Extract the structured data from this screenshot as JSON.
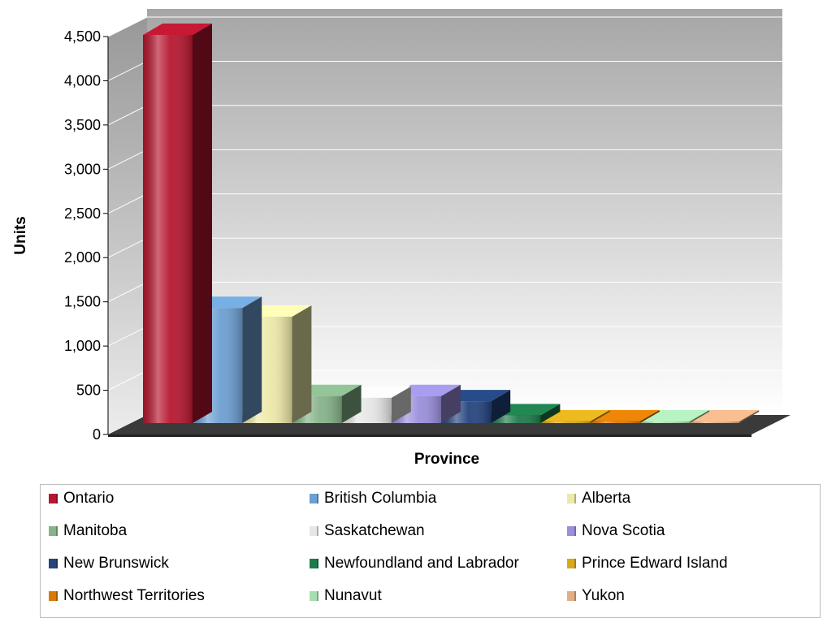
{
  "chart_data": {
    "type": "bar",
    "xlabel": "Province",
    "ylabel": "Units",
    "ylim": [
      0,
      4500
    ],
    "yticks": [
      {
        "value": 0,
        "label": "0"
      },
      {
        "value": 500,
        "label": "500"
      },
      {
        "value": 1000,
        "label": "1,000"
      },
      {
        "value": 1500,
        "label": "1,500"
      },
      {
        "value": 2000,
        "label": "2,000"
      },
      {
        "value": 2500,
        "label": "2,500"
      },
      {
        "value": 3000,
        "label": "3,000"
      },
      {
        "value": 3500,
        "label": "3,500"
      },
      {
        "value": 4000,
        "label": "4,000"
      },
      {
        "value": 4500,
        "label": "4,500"
      }
    ],
    "grid": true,
    "legend_position": "bottom",
    "categories": [
      "Ontario",
      "British Columbia",
      "Alberta",
      "Manitoba",
      "Saskatchewan",
      "Nova Scotia",
      "New Brunswick",
      "Newfoundland and Labrador",
      "Prince Edward Island",
      "Northwest Territories",
      "Nunavut",
      "Yukon"
    ],
    "values": [
      4450,
      1320,
      1220,
      310,
      290,
      310,
      250,
      90,
      20,
      20,
      10,
      10
    ],
    "colors": [
      "#b5172f",
      "#6c9fd2",
      "#ede9a9",
      "#86b38a",
      "#e6e6e6",
      "#9a8fdc",
      "#24447e",
      "#1e7b4b",
      "#d9a91d",
      "#d97a06",
      "#a7ddb1",
      "#e2ae84"
    ]
  }
}
